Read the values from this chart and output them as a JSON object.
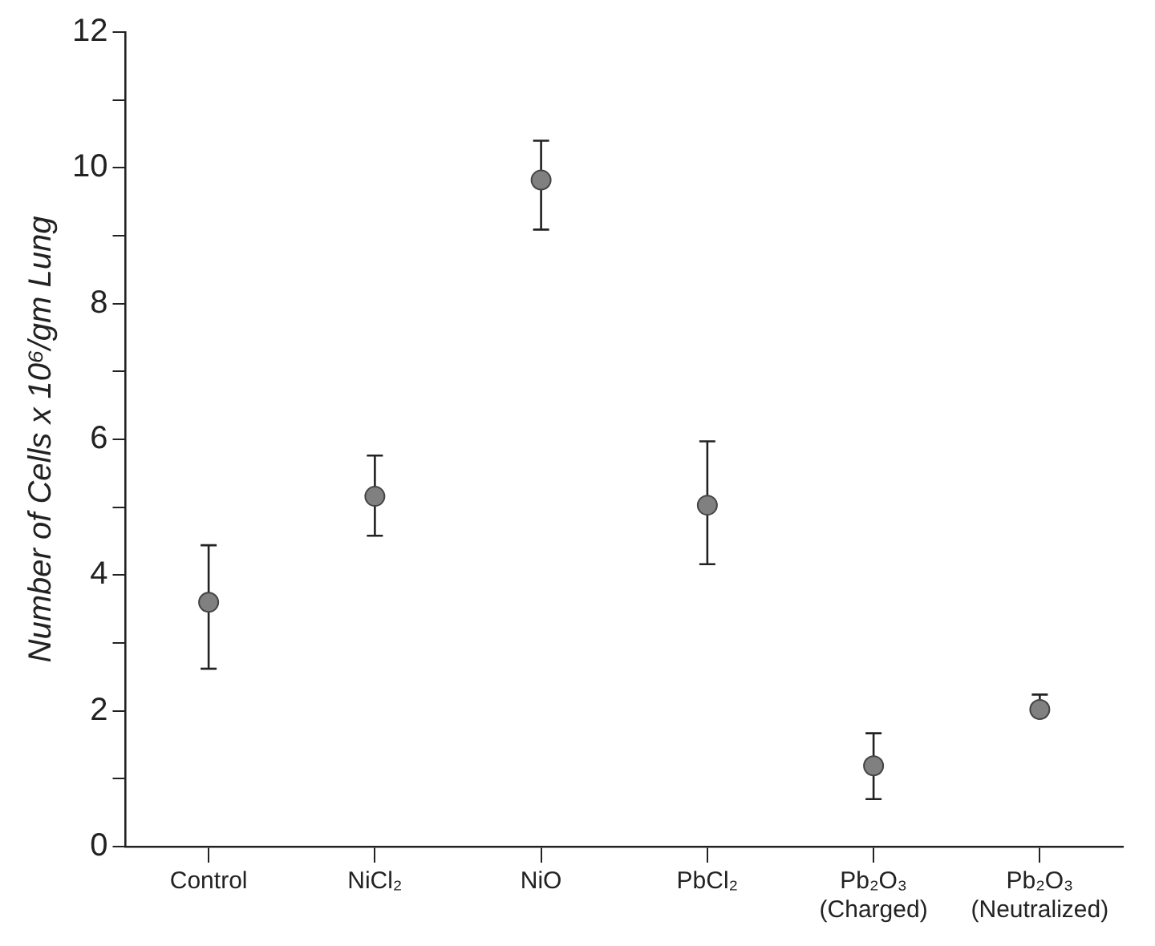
{
  "chart_data": {
    "type": "scatter",
    "ylabel": "Number of Cells x 10⁶/gm Lung",
    "categories": [
      "Control",
      "NiCl₂",
      "NiO",
      "PbCl₂",
      "Pb₂O₃\n(Charged)",
      "Pb₂O₃\n(Neutralized)"
    ],
    "series": [
      {
        "color": "#808080",
        "values": [
          3.6,
          5.16,
          9.82,
          5.03,
          1.19,
          2.02
        ],
        "errors": [
          [
            2.62,
            4.44
          ],
          [
            4.58,
            5.76
          ],
          [
            9.09,
            10.4
          ],
          [
            4.16,
            5.97
          ],
          [
            0.7,
            1.67
          ],
          [
            2.0,
            2.24
          ]
        ]
      }
    ],
    "ylim": [
      0,
      12
    ],
    "yticks": [
      0,
      {
        "value": 1,
        "label": null
      },
      2,
      {
        "value": 3,
        "label": null
      },
      4,
      {
        "value": 5,
        "label": null
      },
      6,
      {
        "value": 7,
        "label": null
      },
      8,
      {
        "value": 9,
        "label": null
      },
      10,
      {
        "value": 11,
        "label": null
      },
      12
    ],
    "grid": false,
    "legend": false,
    "marker": "circle"
  }
}
